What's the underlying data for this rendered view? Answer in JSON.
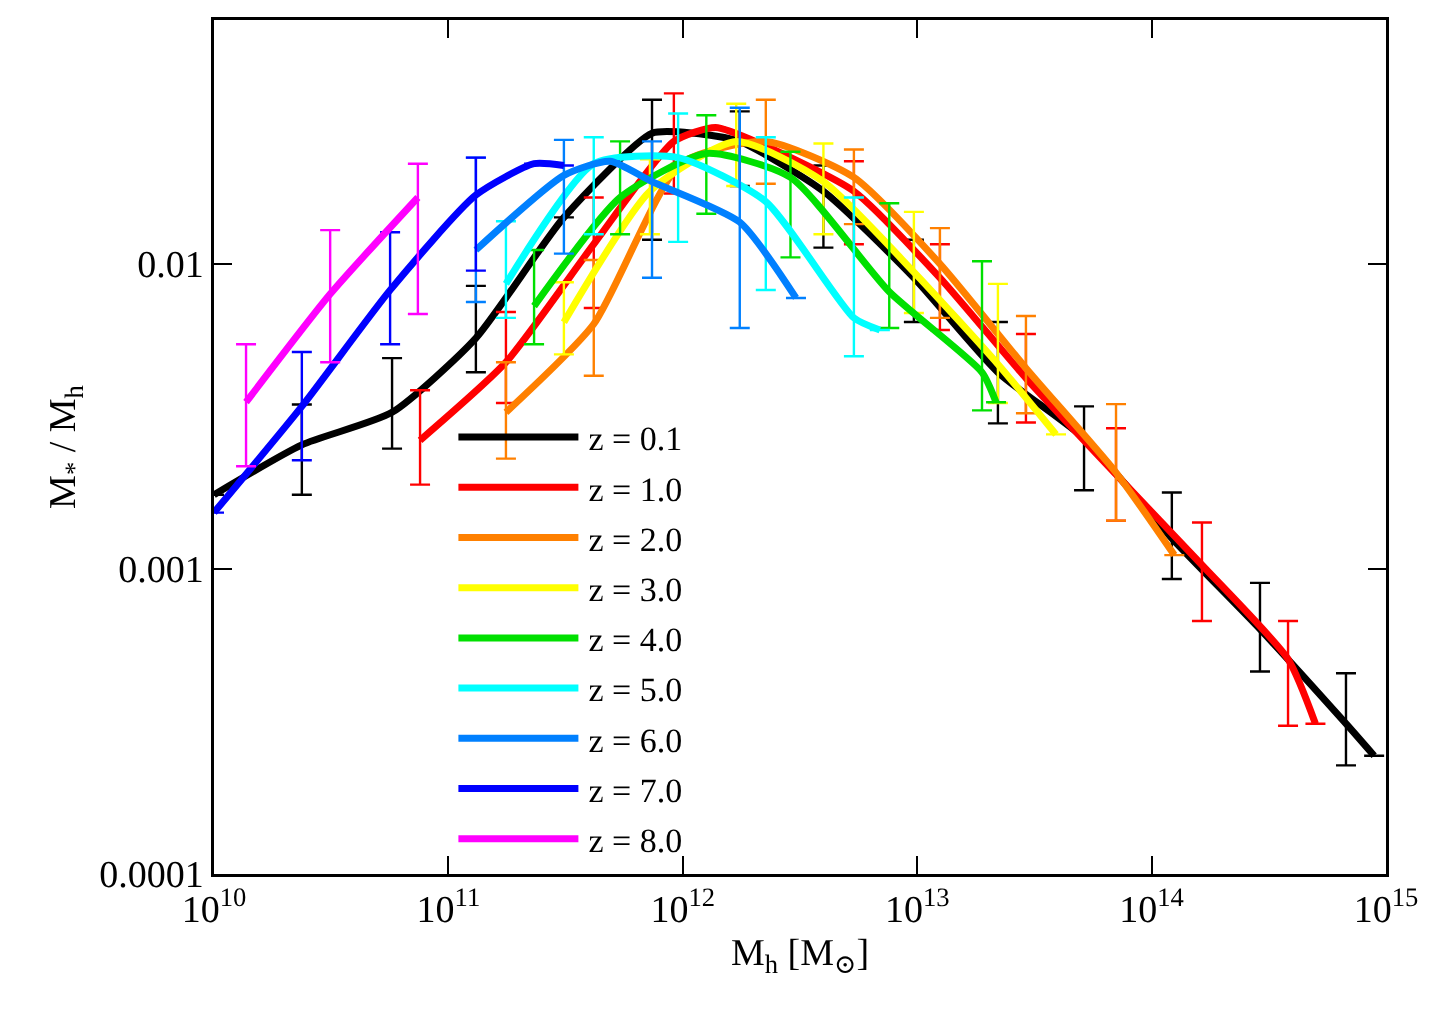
{
  "chart_data": {
    "type": "line",
    "xlabel": "M$_{h}$ [M$_{⊙}$]",
    "ylabel": "M$_{*}$ / M$_{h}$",
    "log": "xy",
    "grid": false,
    "legend": "bottom left",
    "marker": "none",
    "line_style": "solid",
    "xlim": [
      10000000000.0,
      1000000000000000.0
    ],
    "xticks": [
      {
        "value": 10000000000.0,
        "label": "10$^{10}$"
      },
      {
        "value": 100000000000.0,
        "label": "10$^{11}$"
      },
      {
        "value": 1000000000000.0,
        "label": "10$^{12}$"
      },
      {
        "value": 10000000000000.0,
        "label": "10$^{13}$"
      },
      {
        "value": 100000000000000.0,
        "label": "10$^{14}$"
      },
      {
        "value": 1000000000000000.0,
        "label": "10$^{15}$"
      }
    ],
    "ylim": [
      0.0001,
      0.063
    ],
    "yticks": [
      0.0001,
      0.001,
      0.01
    ],
    "series": [
      {
        "name": "z = 0.1",
        "color": "#000000",
        "x": [
          10000000000.0,
          23700000000.0,
          57500000000.0,
          131000000000.0,
          311000000000.0,
          739000000000.0,
          1120000000000.0,
          1750000000000.0,
          3980000000000.0,
          9680000000000.0,
          22100000000000.0,
          51500000000000.0,
          122000000000000.0,
          290000000000000.0,
          675000000000000.0,
          890000000000000.0
        ],
        "values": [
          0.00175,
          0.00255,
          0.00326,
          0.00571,
          0.0142,
          0.0268,
          0.0268,
          0.0252,
          0.0173,
          0.009,
          0.00441,
          0.00268,
          0.00126,
          0.000635,
          0.000311,
          0.000244
        ],
        "errors": [
          null,
          [
            0.00175,
            0.00346
          ],
          [
            0.00248,
            0.00491
          ],
          [
            0.00441,
            0.00847
          ],
          null,
          [
            0.012,
            0.0345
          ],
          null,
          [
            0.018,
            0.0316
          ],
          [
            0.0113,
            0.021
          ],
          [
            0.00645,
            0.012
          ],
          [
            0.003,
            0.00645
          ],
          [
            0.00181,
            0.00341
          ],
          [
            0.000927,
            0.00178
          ],
          [
            0.000461,
            0.0009
          ],
          [
            0.000227,
            0.000455
          ],
          null
        ]
      },
      {
        "name": "z = 1.0",
        "color": "#ff0000",
        "x": [
          75700000000.0,
          176000000000.0,
          417000000000.0,
          916000000000.0,
          1380000000000.0,
          2140000000000.0,
          5370000000000.0,
          12500000000000.0,
          29100000000000.0,
          70500000000000.0,
          164000000000000.0,
          382000000000000.0,
          500000000000000.0
        ],
        "values": [
          0.00264,
          0.00476,
          0.0116,
          0.0252,
          0.028,
          0.0248,
          0.0173,
          0.009,
          0.00422,
          0.00204,
          0.00103,
          0.000506,
          0.000311
        ],
        "errors": [
          [
            0.00189,
            0.00385
          ],
          [
            0.0035,
            0.00695
          ],
          [
            0.00717,
            0.0165
          ],
          [
            0.017,
            0.0362
          ],
          null,
          null,
          [
            0.0116,
            0.0217
          ],
          [
            0.00607,
            0.0116
          ],
          [
            0.00302,
            0.00589
          ],
          [
            0.00144,
            0.00289
          ],
          [
            0.000675,
            0.00142
          ],
          [
            0.000306,
            0.000675
          ],
          null
        ]
      },
      {
        "name": "z = 2.0",
        "color": "#ff8000",
        "x": [
          176000000000.0,
          417000000000.0,
          980000000000.0,
          2260000000000.0,
          5370000000000.0,
          12500000000000.0,
          29100000000000.0,
          70500000000000.0,
          125000000000000.0
        ],
        "values": [
          0.00326,
          0.00635,
          0.0213,
          0.0252,
          0.0192,
          0.01,
          0.00455,
          0.00207,
          0.00111
        ],
        "errors": [
          [
            0.0023,
            0.00476
          ],
          [
            0.0043,
            0.0103
          ],
          null,
          [
            0.0183,
            0.0345
          ],
          [
            0.0135,
            0.0237
          ],
          [
            0.00665,
            0.0131
          ],
          [
            0.00324,
            0.00675
          ],
          [
            0.00144,
            0.00347
          ],
          null
        ]
      },
      {
        "name": "z = 3.0",
        "color": "#ffff00",
        "x": [
          311000000000.0,
          724000000000.0,
          1690000000000.0,
          3980000000000.0,
          9680000000000.0,
          22100000000000.0,
          39100000000000.0
        ],
        "values": [
          0.00644,
          0.0173,
          0.0252,
          0.0186,
          0.0094,
          0.00469,
          0.00276
        ],
        "errors": [
          [
            0.00505,
            0.0087
          ],
          [
            0.0125,
            0.022
          ],
          [
            0.018,
            0.0335
          ],
          [
            0.0125,
            0.0248
          ],
          [
            0.0069,
            0.0148
          ],
          [
            0.0035,
            0.0086
          ],
          null
        ]
      },
      {
        "name": "z = 4.0",
        "color": "#00e000",
        "x": [
          232000000000.0,
          540000000000.0,
          1260000000000.0,
          2880000000000.0,
          7600000000000.0,
          18900000000000.0,
          21700000000000.0
        ],
        "values": [
          0.00727,
          0.0165,
          0.023,
          0.0192,
          0.0081,
          0.00441,
          0.00352
        ],
        "errors": [
          [
            0.00545,
            0.0111
          ],
          [
            0.0125,
            0.0252
          ],
          [
            0.0146,
            0.0307
          ],
          [
            0.0105,
            0.0233
          ],
          [
            0.00616,
            0.0158
          ],
          [
            0.00331,
            0.0102
          ],
          null
        ]
      },
      {
        "name": "z = 5.0",
        "color": "#00ffff",
        "x": [
          176000000000.0,
          417000000000.0,
          955000000000.0,
          2260000000000.0,
          5370000000000.0,
          6930000000000.0
        ],
        "values": [
          0.0086,
          0.0213,
          0.0223,
          0.016,
          0.00665,
          0.00607
        ],
        "errors": [
          [
            0.00665,
            0.0138
          ],
          [
            0.0125,
            0.026
          ],
          [
            0.0118,
            0.0311
          ],
          [
            0.00821,
            0.026
          ],
          [
            0.00498,
            0.0165
          ],
          null
        ]
      },
      {
        "name": "z = 6.0",
        "color": "#0080ff",
        "x": [
          131000000000.0,
          311000000000.0,
          489000000000.0,
          739000000000.0,
          1750000000000.0,
          3040000000000.0
        ],
        "values": [
          0.0111,
          0.0195,
          0.0217,
          0.0186,
          0.0137,
          0.00773
        ],
        "errors": [
          [
            0.0075,
            0.0223
          ],
          [
            0.0108,
            0.0255
          ],
          null,
          [
            0.009,
            0.0252
          ],
          [
            0.00616,
            0.0325
          ],
          null
        ]
      },
      {
        "name": "z = 7.0",
        "color": "#0000ff",
        "x": [
          10000000000.0,
          23700000000.0,
          56400000000.0,
          131000000000.0,
          232000000000.0,
          311000000000.0
        ],
        "values": [
          0.00153,
          0.00341,
          0.0082,
          0.0168,
          0.0213,
          0.021
        ],
        "errors": [
          null,
          [
            0.00227,
            0.00514
          ],
          [
            0.00545,
            0.0127
          ],
          [
            0.0095,
            0.0223
          ],
          null,
          null
        ]
      },
      {
        "name": "z = 8.0",
        "color": "#ff00ff",
        "x": [
          13700000000.0,
          31300000000.0,
          74100000000.0
        ],
        "values": [
          0.00352,
          0.00796,
          0.0165
        ],
        "errors": [
          [
            0.00217,
            0.00545
          ],
          [
            0.00476,
            0.0129
          ],
          [
            0.00685,
            0.0213
          ]
        ]
      }
    ]
  }
}
